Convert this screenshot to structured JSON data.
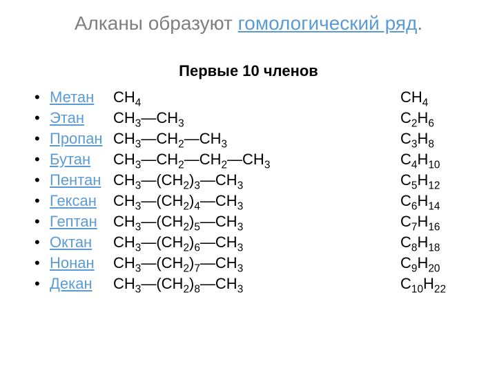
{
  "title_prefix": "Алканы образуют ",
  "title_link": "гомологический ряд",
  "title_suffix": ".",
  "subtitle": "Первые 10 членов",
  "rows": [
    {
      "name": "Метан",
      "struct": "CH<sub>4</sub>",
      "formula": "CH<sub>4</sub>"
    },
    {
      "name": "Этан",
      "struct": "CH<sub>3</sub>—CH<sub>3</sub>",
      "formula": "C<sub>2</sub>H<sub>6</sub>"
    },
    {
      "name": "Пропан",
      "struct": "CH<sub>3</sub>—CH<sub>2</sub>—CH<sub>3</sub>",
      "formula": "C<sub>3</sub>H<sub>8</sub>"
    },
    {
      "name": "Бутан",
      "struct": "CH<sub>3</sub>—CH<sub>2</sub>—CH<sub>2</sub>—CH<sub>3</sub>",
      "formula": "C<sub>4</sub>H<sub>10</sub>"
    },
    {
      "name": "Пентан",
      "struct": "CH<sub>3</sub>—(CH<sub>2</sub>)<sub>3</sub>—CH<sub>3</sub>",
      "formula": "C<sub>5</sub>H<sub>12</sub>"
    },
    {
      "name": "Гексан",
      "struct": "CH<sub>3</sub>—(CH<sub>2</sub>)<sub>4</sub>—CH<sub>3</sub>",
      "formula": "C<sub>6</sub>H<sub>14</sub>"
    },
    {
      "name": "Гептан",
      "struct": "CH<sub>3</sub>—(CH<sub>2</sub>)<sub>5</sub>—CH<sub>3</sub>",
      "formula": "C<sub>7</sub>H<sub>16</sub>"
    },
    {
      "name": "Октан",
      "struct": "CH<sub>3</sub>—(CH<sub>2</sub>)<sub>6</sub>—CH<sub>3</sub>",
      "formula": "C<sub>8</sub>H<sub>18</sub>"
    },
    {
      "name": "Нонан",
      "struct": "CH<sub>3</sub>—(CH<sub>2</sub>)<sub>7</sub>—CH<sub>3</sub>",
      "formula": "C<sub>9</sub>H<sub>20</sub>"
    },
    {
      "name": "Декан",
      "struct": "CH<sub>3</sub>—(CH<sub>2</sub>)<sub>8</sub>—CH<sub>3</sub>",
      "formula": "C<sub>10</sub>H<sub>22</sub>"
    }
  ],
  "colors": {
    "title_gray": "#7f7f7f",
    "link_blue": "#5b9bd5",
    "text": "#000000",
    "background": "#ffffff"
  },
  "fontsize": {
    "title": 28,
    "body": 22
  }
}
